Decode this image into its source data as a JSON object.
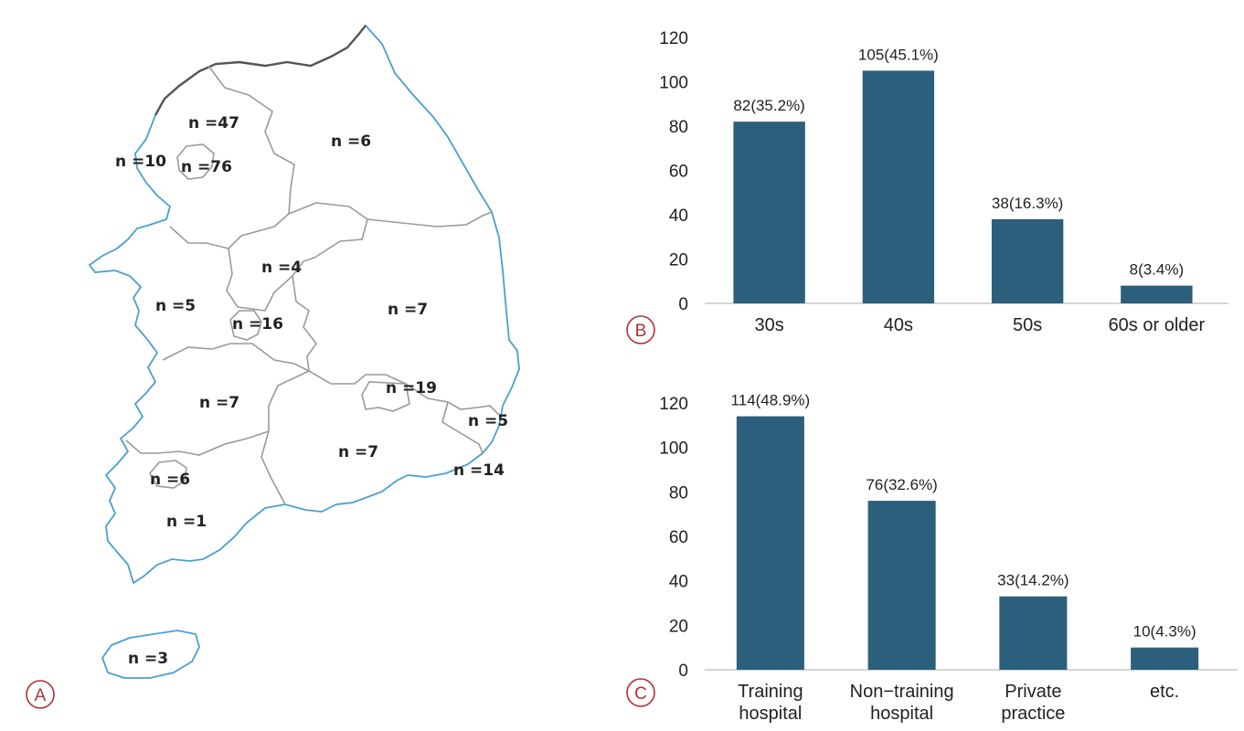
{
  "map": {
    "regions": [
      {
        "id": "gyeonggi",
        "label": "n =47"
      },
      {
        "id": "gangwon",
        "label": "n =6"
      },
      {
        "id": "incheon",
        "label": "n =10"
      },
      {
        "id": "seoul",
        "label": "n =76"
      },
      {
        "id": "chungbuk",
        "label": "n =4"
      },
      {
        "id": "chungnam",
        "label": "n =5"
      },
      {
        "id": "daejeon",
        "label": "n =16"
      },
      {
        "id": "gyeongbuk",
        "label": "n =7"
      },
      {
        "id": "daegu",
        "label": "n =19"
      },
      {
        "id": "ulsan",
        "label": "n =5"
      },
      {
        "id": "jeonbuk",
        "label": "n =7"
      },
      {
        "id": "gyeongnam",
        "label": "n =7"
      },
      {
        "id": "busan",
        "label": "n =14"
      },
      {
        "id": "gwangju",
        "label": "n =6"
      },
      {
        "id": "jeonnam",
        "label": "n =1"
      },
      {
        "id": "jeju",
        "label": "n =3"
      }
    ],
    "colors": {
      "coast": "#4a9fcf",
      "border": "#9a9a9a",
      "north": "#555555"
    }
  },
  "panel_letters": {
    "a": "A",
    "b": "B",
    "c": "C"
  },
  "colors": {
    "bar": "#2c5f7c",
    "axis": "#c8c8c8",
    "letter": "#b0303a"
  },
  "chart_data": [
    {
      "type": "bar",
      "panel": "B",
      "categories": [
        "30s",
        "40s",
        "50s",
        "60s or older"
      ],
      "values": [
        82,
        105,
        38,
        8
      ],
      "data_labels": [
        "82(35.2%)",
        "105(45.1%)",
        "38(16.3%)",
        "8(3.4%)"
      ],
      "ylim": [
        0,
        120
      ],
      "yticks": [
        0,
        20,
        40,
        60,
        80,
        100,
        120
      ],
      "grid": false,
      "title": "",
      "xlabel": "",
      "ylabel": ""
    },
    {
      "type": "bar",
      "panel": "C",
      "categories": [
        "Training hospital",
        "Non−training hospital",
        "Private practice",
        "etc."
      ],
      "values": [
        114,
        76,
        33,
        10
      ],
      "data_labels": [
        "114(48.9%)",
        "76(32.6%)",
        "33(14.2%)",
        "10(4.3%)"
      ],
      "ylim": [
        0,
        120
      ],
      "yticks": [
        0,
        20,
        40,
        60,
        80,
        100,
        120
      ],
      "grid": false,
      "title": "",
      "xlabel": "",
      "ylabel": ""
    }
  ]
}
